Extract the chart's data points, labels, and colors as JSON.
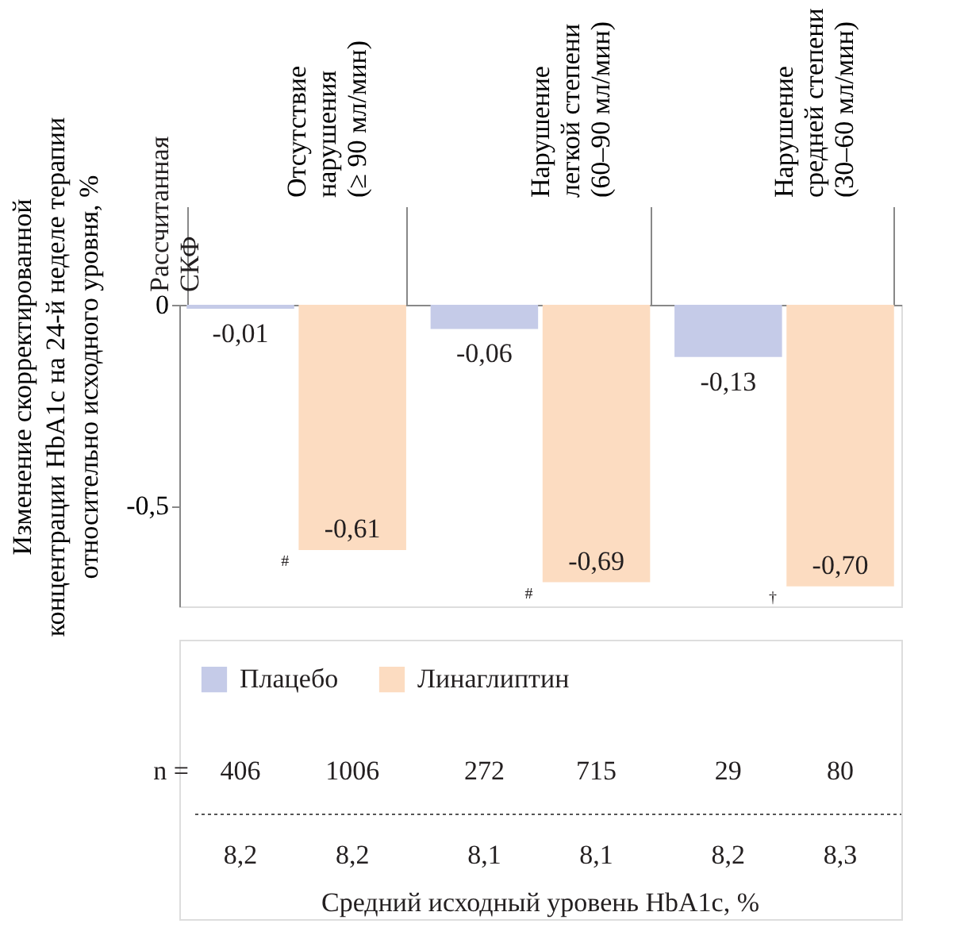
{
  "chart_data": {
    "type": "bar",
    "ylabel": "Изменение скорректированной\nконцентрации HbA1c на 24-й неделе терапии\nотносительно исходного уровня, %",
    "categories": [
      "Отсутствие\nнарушения\n(≥ 90 мл/мин)",
      "Нарушение\nлегкой степени\n(60–90 мл/мин)",
      "Нарушение\nсредней степени\n(30–60 мл/мин)"
    ],
    "series": [
      {
        "name": "Плацебо",
        "color": "#c5cbe8",
        "values": [
          -0.01,
          -0.06,
          -0.13
        ],
        "value_labels": [
          "-0,01",
          "-0,06",
          "-0,13"
        ]
      },
      {
        "name": "Линаглиптин",
        "color": "#fcdcc1",
        "values": [
          -0.61,
          -0.69,
          -0.7
        ],
        "value_labels": [
          "-0,61",
          "-0,69",
          "-0,70"
        ]
      }
    ],
    "ylim": [
      -0.75,
      0
    ],
    "yticks": [
      0,
      {
        "value": -0.5,
        "label": "-0,5"
      }
    ],
    "grid": false,
    "legend": "bottom",
    "annotations": [
      {
        "text": "#",
        "x": "Отсутствие\nнарушения\n(≥ 90 мл/мин)",
        "y": -0.61
      },
      {
        "text": "#",
        "x": "Нарушение\nлегкой степени\n(60–90 мл/мин)",
        "y": -0.69
      },
      {
        "text": "†",
        "x": "Нарушение\nсредней степени\n(30–60 мл/мин)",
        "y": -0.7
      },
      "Рассчитанная\nСКФ",
      "n =",
      "406",
      "1006",
      "272",
      "715",
      "29",
      "80",
      "8,2",
      "8,2",
      "8,1",
      "8,1",
      "8,2",
      "8,3",
      "Средний исходный уровень HbA1c, %"
    ]
  }
}
